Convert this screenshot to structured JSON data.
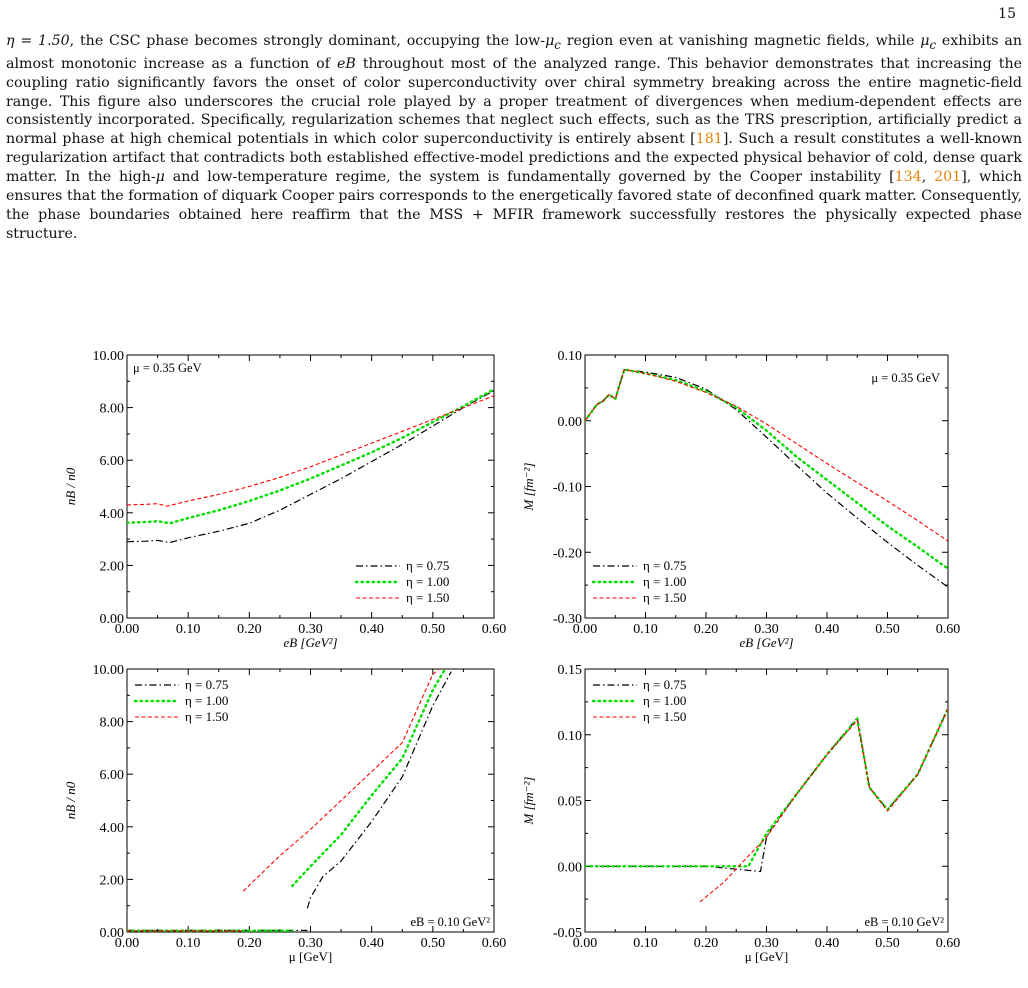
{
  "page_number": "15",
  "paragraph": [
    {
      "t": "η = 1.50",
      "m": true
    },
    {
      "t": ", the CSC phase becomes strongly dominant, occupying the low-"
    },
    {
      "t": "μ",
      "m": true
    },
    {
      "t": "c",
      "sub": true
    },
    {
      "t": " region even at vanishing magnetic fields, while "
    },
    {
      "t": "μ",
      "m": true
    },
    {
      "t": "c",
      "sub": true
    },
    {
      "t": " exhibits an almost monotonic increase as a function of "
    },
    {
      "t": "eB",
      "m": true
    },
    {
      "t": " throughout most of the analyzed range. This behavior demonstrates that increasing the coupling ratio significantly favors the onset of color superconductivity over chiral symmetry breaking across the entire magnetic-field range. This figure also underscores the crucial role played by a proper treatment of divergences when medium-dependent effects are consistently incorporated. Specifically, regularization schemes that neglect such effects, such as the TRS prescription, artificially predict a normal phase at high chemical potentials in which color superconductivity is entirely absent ["
    },
    {
      "t": "181",
      "c": true
    },
    {
      "t": "]. Such a result constitutes a well-known regularization artifact that contradicts both established effective-model predictions and the expected physical behavior of cold, dense quark matter. In the high-"
    },
    {
      "t": "μ",
      "m": true
    },
    {
      "t": " and low-temperature regime, the system is fundamentally governed by the Cooper instability ["
    },
    {
      "t": "134",
      "c": true
    },
    {
      "t": ", "
    },
    {
      "t": "201",
      "c": true
    },
    {
      "t": "], which ensures that the formation of diquark Cooper pairs corresponds to the energetically favored state of deconfined quark matter. Consequently, the phase boundaries obtained here reaffirm that the MSS + MFIR framework successfully restores the physically expected phase structure."
    }
  ],
  "colors": {
    "eta075": "#000000",
    "eta100": "#00dd00",
    "eta150": "#ff0000",
    "cite": "#e8820c"
  },
  "chart_data": [
    {
      "type": "line",
      "xlabel": "eB [GeV²]",
      "ylabel": "nB / n0",
      "xlim": [
        0,
        0.6
      ],
      "ylim": [
        0,
        10
      ],
      "xticks": [
        "0.00",
        "0.10",
        "0.20",
        "0.30",
        "0.40",
        "0.50",
        "0.60"
      ],
      "yticks": [
        "0.00",
        "2.00",
        "4.00",
        "6.00",
        "8.00",
        "10.00"
      ],
      "annotation": "μ = 0.35 GeV",
      "annotation_pos": "top-left",
      "legend_pos": "bottom-right",
      "series": [
        {
          "name": "η = 0.75",
          "style": "dashdot",
          "color": "#000000",
          "x": [
            0,
            0.03,
            0.05,
            0.07,
            0.1,
            0.15,
            0.2,
            0.25,
            0.3,
            0.35,
            0.4,
            0.45,
            0.5,
            0.55,
            0.6
          ],
          "y": [
            2.9,
            2.92,
            2.95,
            2.87,
            3.05,
            3.3,
            3.6,
            4.1,
            4.7,
            5.3,
            5.95,
            6.6,
            7.3,
            8.0,
            8.65
          ]
        },
        {
          "name": "η = 1.00",
          "style": "dotted",
          "color": "#00dd00",
          "x": [
            0,
            0.03,
            0.05,
            0.07,
            0.1,
            0.15,
            0.2,
            0.25,
            0.3,
            0.35,
            0.4,
            0.45,
            0.5,
            0.55,
            0.6
          ],
          "y": [
            3.62,
            3.65,
            3.68,
            3.6,
            3.8,
            4.1,
            4.45,
            4.85,
            5.3,
            5.8,
            6.3,
            6.85,
            7.45,
            8.05,
            8.7
          ]
        },
        {
          "name": "η = 1.50",
          "style": "dashed",
          "color": "#ff0000",
          "x": [
            0,
            0.03,
            0.05,
            0.065,
            0.1,
            0.15,
            0.2,
            0.25,
            0.3,
            0.35,
            0.4,
            0.45,
            0.5,
            0.55,
            0.6
          ],
          "y": [
            4.3,
            4.32,
            4.35,
            4.25,
            4.45,
            4.7,
            5.0,
            5.35,
            5.75,
            6.2,
            6.65,
            7.1,
            7.55,
            8.0,
            8.45
          ]
        }
      ]
    },
    {
      "type": "line",
      "xlabel": "eB [GeV²]",
      "ylabel": "M [fm⁻²]",
      "xlim": [
        0,
        0.6
      ],
      "ylim": [
        -0.3,
        0.1
      ],
      "xticks": [
        "0.00",
        "0.10",
        "0.20",
        "0.30",
        "0.40",
        "0.50",
        "0.60"
      ],
      "yticks": [
        "-0.30",
        "-0.20",
        "-0.10",
        "0.00",
        "0.10"
      ],
      "annotation": "μ = 0.35 GeV",
      "annotation_pos": "top-right",
      "legend_pos": "bottom-left",
      "series": [
        {
          "name": "η = 0.75",
          "style": "dashdot",
          "color": "#000000",
          "x": [
            0,
            0.02,
            0.03,
            0.04,
            0.05,
            0.065,
            0.1,
            0.15,
            0.2,
            0.25,
            0.3,
            0.35,
            0.4,
            0.45,
            0.5,
            0.55,
            0.6
          ],
          "y": [
            0.0,
            0.025,
            0.03,
            0.04,
            0.033,
            0.078,
            0.074,
            0.066,
            0.048,
            0.017,
            -0.025,
            -0.068,
            -0.11,
            -0.148,
            -0.185,
            -0.22,
            -0.253
          ]
        },
        {
          "name": "η = 1.00",
          "style": "dotted",
          "color": "#00dd00",
          "x": [
            0,
            0.02,
            0.03,
            0.04,
            0.05,
            0.065,
            0.1,
            0.15,
            0.2,
            0.25,
            0.3,
            0.35,
            0.4,
            0.45,
            0.5,
            0.55,
            0.6
          ],
          "y": [
            0.0,
            0.025,
            0.03,
            0.04,
            0.033,
            0.078,
            0.072,
            0.062,
            0.045,
            0.02,
            -0.015,
            -0.055,
            -0.09,
            -0.125,
            -0.16,
            -0.192,
            -0.225
          ]
        },
        {
          "name": "η = 1.50",
          "style": "dashed",
          "color": "#ff0000",
          "x": [
            0,
            0.02,
            0.03,
            0.04,
            0.05,
            0.065,
            0.1,
            0.15,
            0.2,
            0.25,
            0.3,
            0.35,
            0.4,
            0.45,
            0.5,
            0.55,
            0.6
          ],
          "y": [
            0.0,
            0.025,
            0.03,
            0.04,
            0.033,
            0.078,
            0.072,
            0.06,
            0.043,
            0.022,
            -0.005,
            -0.035,
            -0.065,
            -0.094,
            -0.122,
            -0.152,
            -0.183
          ]
        }
      ]
    },
    {
      "type": "line",
      "xlabel": "μ [GeV]",
      "ylabel": "nB / n0",
      "xlim": [
        0,
        0.6
      ],
      "ylim": [
        0,
        10
      ],
      "xticks": [
        "0.00",
        "0.10",
        "0.20",
        "0.30",
        "0.40",
        "0.50",
        "0.60"
      ],
      "yticks": [
        "0.00",
        "2.00",
        "4.00",
        "6.00",
        "8.00",
        "10.00"
      ],
      "annotation": "eB = 0.10 GeV²",
      "annotation_pos": "bottom-right",
      "legend_pos": "top-left",
      "series": [
        {
          "name": "η = 0.75",
          "style": "dashdot",
          "color": "#000000",
          "x": [
            0,
            0.1,
            0.2,
            0.295
          ],
          "y": [
            0.06,
            0.06,
            0.06,
            0.06
          ]
        },
        {
          "name": "η = 0.75",
          "style": "dashdot",
          "color": "#000000",
          "legend": false,
          "x": [
            0.295,
            0.3,
            0.31,
            0.32,
            0.35,
            0.4,
            0.45,
            0.5,
            0.53
          ],
          "y": [
            0.9,
            1.3,
            1.7,
            2.1,
            2.7,
            4.2,
            5.9,
            8.6,
            9.9
          ]
        },
        {
          "name": "η = 1.00",
          "style": "dotted",
          "color": "#00dd00",
          "x": [
            0,
            0.1,
            0.2,
            0.27
          ],
          "y": [
            0.05,
            0.05,
            0.05,
            0.05
          ]
        },
        {
          "name": "η = 1.00",
          "style": "dotted",
          "color": "#00dd00",
          "legend": false,
          "x": [
            0.27,
            0.3,
            0.35,
            0.4,
            0.45,
            0.5,
            0.52
          ],
          "y": [
            1.75,
            2.5,
            3.7,
            5.2,
            6.6,
            9.2,
            10.0
          ]
        },
        {
          "name": "η = 1.50",
          "style": "dashed",
          "color": "#ff0000",
          "x": [
            0,
            0.1,
            0.19
          ],
          "y": [
            0.04,
            0.04,
            0.04
          ]
        },
        {
          "name": "η = 1.50",
          "style": "dashed",
          "color": "#ff0000",
          "legend": false,
          "x": [
            0.19,
            0.25,
            0.3,
            0.35,
            0.4,
            0.45,
            0.5,
            0.51
          ],
          "y": [
            1.55,
            2.9,
            3.9,
            5.0,
            6.1,
            7.2,
            9.8,
            10.0
          ]
        }
      ]
    },
    {
      "type": "line",
      "xlabel": "μ [GeV]",
      "ylabel": "M [fm⁻²]",
      "xlim": [
        0,
        0.6
      ],
      "ylim": [
        -0.05,
        0.15
      ],
      "xticks": [
        "0.00",
        "0.10",
        "0.20",
        "0.30",
        "0.40",
        "0.50",
        "0.60"
      ],
      "yticks": [
        "-0.05",
        "0.00",
        "0.05",
        "0.10",
        "0.15"
      ],
      "annotation": "eB = 0.10 GeV²",
      "annotation_pos": "bottom-right",
      "legend_pos": "top-left",
      "series": [
        {
          "name": "η = 0.75",
          "style": "dashdot",
          "color": "#000000",
          "x": [
            0,
            0.1,
            0.2,
            0.29,
            0.3,
            0.31,
            0.35,
            0.4,
            0.45,
            0.47,
            0.5,
            0.55,
            0.6
          ],
          "y": [
            0.0,
            0.0,
            0.0,
            -0.004,
            0.022,
            0.03,
            0.055,
            0.085,
            0.113,
            0.06,
            0.043,
            0.07,
            0.12
          ]
        },
        {
          "name": "η = 1.00",
          "style": "dotted",
          "color": "#00dd00",
          "x": [
            0,
            0.1,
            0.2,
            0.27,
            0.3,
            0.35,
            0.4,
            0.45,
            0.47,
            0.5,
            0.55,
            0.6
          ],
          "y": [
            0.0,
            0.0,
            0.0,
            0.0,
            0.025,
            0.055,
            0.085,
            0.112,
            0.06,
            0.043,
            0.07,
            0.12
          ]
        },
        {
          "name": "η = 1.50",
          "style": "dashed",
          "color": "#ff0000",
          "x": [
            0.19,
            0.23,
            0.26,
            0.3,
            0.35,
            0.4,
            0.45,
            0.47,
            0.5,
            0.55,
            0.6
          ],
          "y": [
            -0.027,
            -0.012,
            0.003,
            0.022,
            0.055,
            0.085,
            0.111,
            0.06,
            0.042,
            0.07,
            0.12
          ]
        }
      ]
    }
  ]
}
